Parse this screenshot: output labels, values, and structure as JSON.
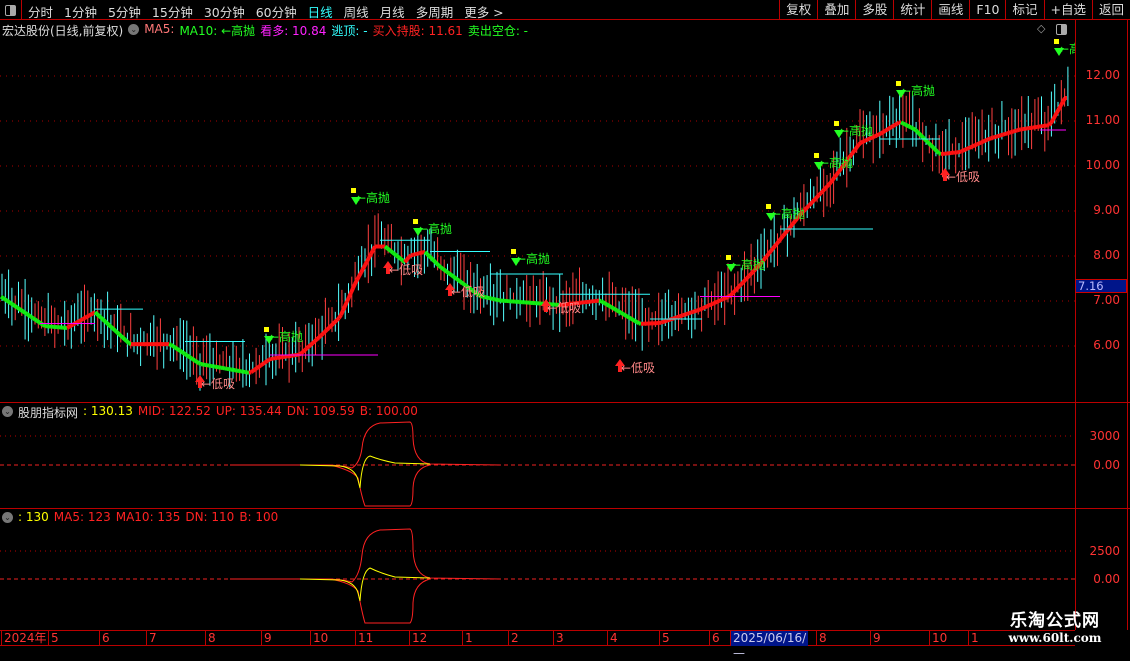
{
  "toolbar": {
    "periods": [
      "分时",
      "1分钟",
      "5分钟",
      "15分钟",
      "30分钟",
      "60分钟",
      "日线",
      "周线",
      "月线",
      "多周期",
      "更多 >"
    ],
    "active_period": "日线",
    "right_buttons": [
      "复权",
      "叠加",
      "多股",
      "统计",
      "画线",
      "F10",
      "标记",
      "+自选",
      "返回"
    ]
  },
  "info": {
    "title": "宏达股份(日线,前复权)",
    "ma5": "MA5:",
    "ma10": "MA10: ←高抛",
    "kanduo": "看多: 10.84",
    "taoding": "逃顶: -",
    "buy": "买入持股: 11.61",
    "sell": "卖出空仓: -"
  },
  "colors": {
    "up": "#ff2020",
    "down": "#20ff20",
    "accent": "#00ffff",
    "axis": "#bb0000",
    "highlight": "#00158a"
  },
  "main_axis": {
    "ticks": [
      "12.00",
      "11.00",
      "10.00",
      "9.00",
      "8.00",
      "7.00",
      "6.00"
    ],
    "current_price": "7.16"
  },
  "pane2": {
    "name": "股朋指标网",
    "value": ": 130.13",
    "mid": "MID: 122.52",
    "up": "UP: 135.44",
    "dn": "DN: 109.59",
    "b": "B: 100.00",
    "ticks": [
      "3000",
      "0.00"
    ]
  },
  "pane3": {
    "value": ": 130",
    "ma5": "MA5: 123",
    "ma10": "MA10: 135",
    "dn": "DN: 110",
    "b": "B: 100",
    "ticks": [
      "2500",
      "0.00"
    ]
  },
  "date_axis": {
    "labels": [
      "2024年",
      "5",
      "6",
      "7",
      "8",
      "9",
      "10",
      "11",
      "12",
      "1",
      "2",
      "3",
      "4",
      "5",
      "6",
      "2025/06/16/—",
      "8",
      "9",
      "10",
      "1"
    ]
  },
  "watermark": {
    "name": "乐淘公式网",
    "url": "www.60lt.com"
  },
  "chart_data": {
    "type": "candlestick",
    "ylim": [
      5.3,
      12.8
    ],
    "trend_line": [
      7.2,
      6.53,
      6.49,
      6.84,
      6.13,
      6.13,
      5.69,
      5.49,
      5.8,
      5.9,
      6.3,
      6.73,
      7.47,
      8.3,
      8.3,
      7.95,
      8.1,
      8.18,
      7.85,
      7.2,
      7.1,
      7.0,
      7.1,
      6.58,
      6.6,
      6.9,
      7.2,
      7.9,
      9.0,
      9.7,
      10.6,
      10.8,
      11.07,
      10.9,
      10.35,
      10.4,
      10.7,
      10.9,
      11.0,
      11.6
    ],
    "signals": {
      "sell_label": "高抛",
      "buy_label": "低吸"
    }
  }
}
